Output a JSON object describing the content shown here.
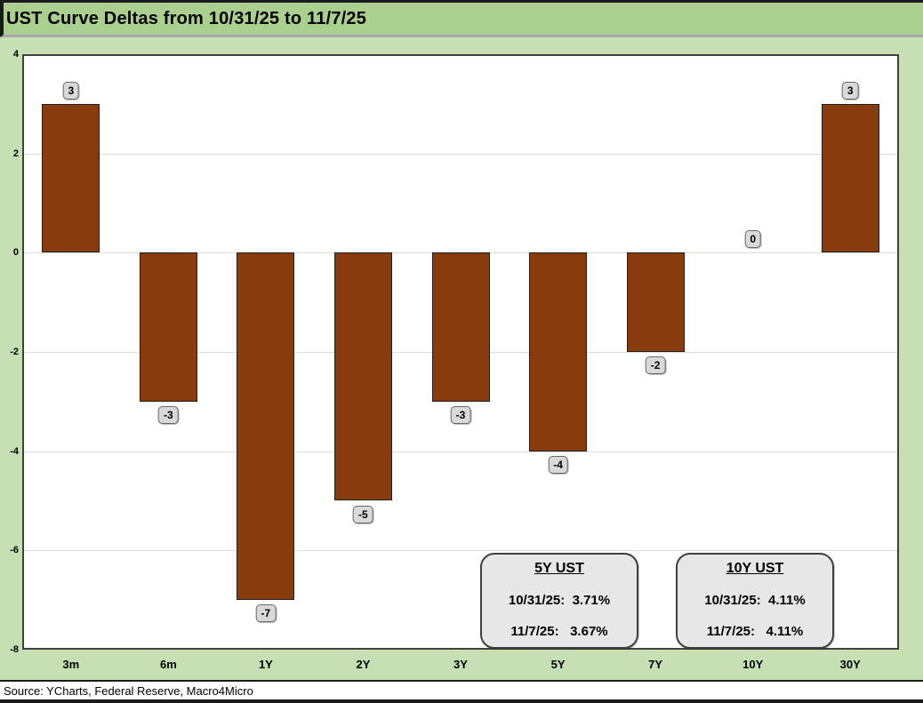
{
  "header": {
    "title": "UST Curve Deltas from 10/31/25 to 11/7/25"
  },
  "chart_data": {
    "type": "bar",
    "title": "UST Curve Deltas from 10/31/25 to 11/7/25",
    "categories": [
      "3m",
      "6m",
      "1Y",
      "2Y",
      "3Y",
      "5Y",
      "7Y",
      "10Y",
      "30Y"
    ],
    "values": [
      3,
      -3,
      -7,
      -5,
      -3,
      -4,
      -2,
      0,
      3
    ],
    "data_labels": [
      "3",
      "-3",
      "-7",
      "-5",
      "-3",
      "-4",
      "-2",
      "0",
      "3"
    ],
    "xlabel": "",
    "ylabel": "",
    "ylim": [
      -8,
      4
    ],
    "yticks": [
      4,
      2,
      0,
      -2,
      -4,
      -6,
      -8
    ],
    "grid": true,
    "legend": "none",
    "bar_color": "#883C0E",
    "bar_border_color": "#1F1F1F"
  },
  "annotations": [
    {
      "title": "5Y UST",
      "line1": "10/31/25:  3.71%",
      "line2": "11/7/25:   3.67%"
    },
    {
      "title": "10Y UST",
      "line1": "10/31/25:  4.11%",
      "line2": "11/7/25:   4.11%"
    }
  ],
  "footer": {
    "source": "Source: YCharts, Federal Reserve, Macro4Micro"
  },
  "colors": {
    "title_bar_bg": "#A9D08E",
    "chart_bg": "#C6E0B4",
    "plot_bg": "#FFFFFF",
    "bar_fill": "#883C0E",
    "label_box_bg": "#D9D9D9",
    "callout_bg": "#E8E7E7",
    "gridline": "#DCDCDC",
    "border_black": "#1A1A1A"
  }
}
